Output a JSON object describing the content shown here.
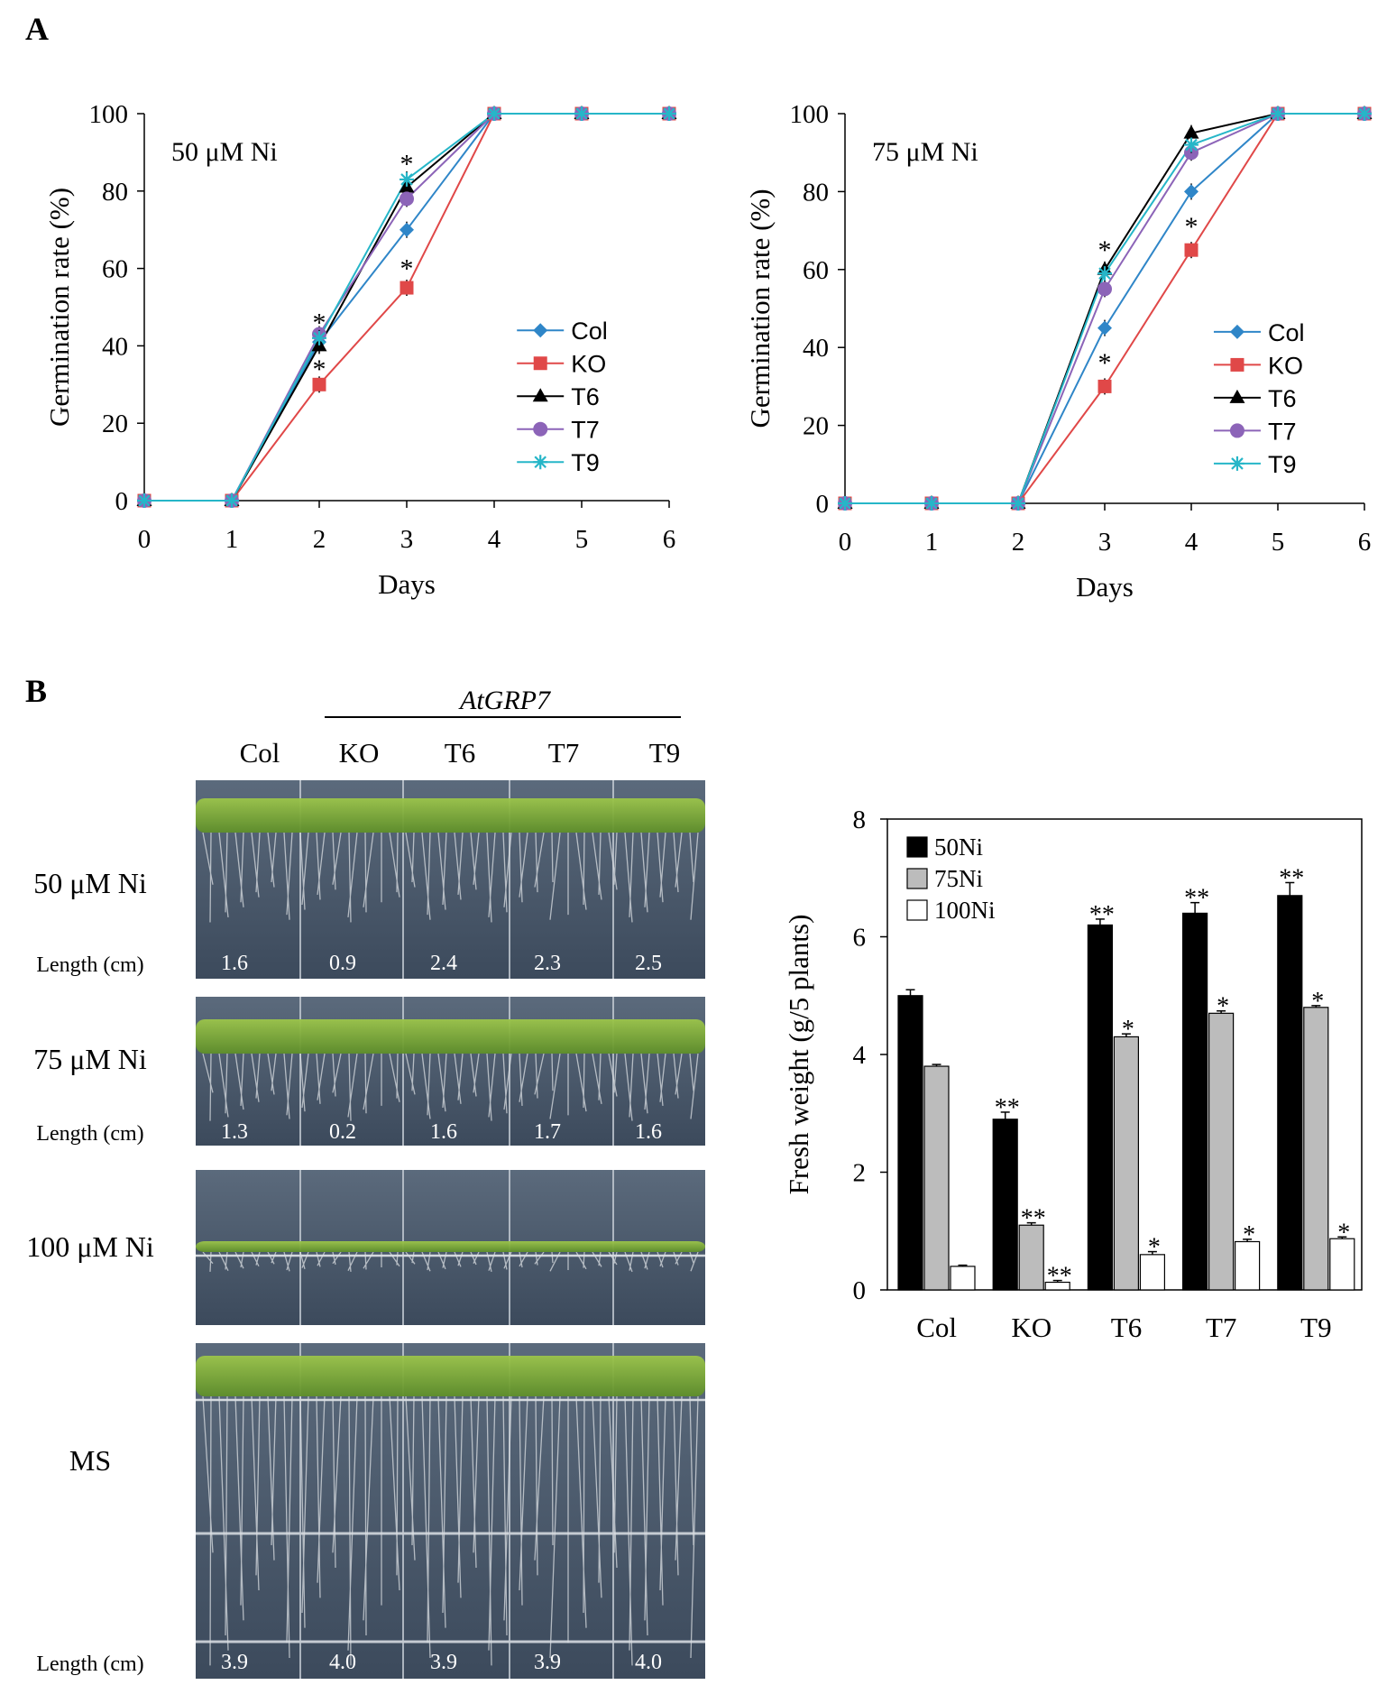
{
  "panel_labels": {
    "a": "A",
    "b": "B"
  },
  "colors": {
    "Col": "#2f86c8",
    "KO": "#e04848",
    "T6": "#000000",
    "T7": "#8c64b8",
    "T9": "#26b6c8",
    "50Ni": "#000000",
    "75Ni": "#bcbcbc",
    "100Ni": "#ffffff"
  },
  "chart_data": [
    {
      "type": "line",
      "condition": "50 μM Ni",
      "xlabel": "Days",
      "ylabel": "Germination  rate (%)",
      "xlim": [
        0,
        6
      ],
      "ylim": [
        0,
        100
      ],
      "xticks": [
        "0",
        "1",
        "2",
        "3",
        "4",
        "5",
        "6"
      ],
      "yticks": [
        "0",
        "20",
        "40",
        "60",
        "80",
        "100"
      ],
      "x": [
        0,
        1,
        2,
        3,
        4,
        5,
        6
      ],
      "series": [
        {
          "name": "Col",
          "marker": "diamond",
          "values": [
            0,
            0,
            41,
            70,
            100,
            100,
            100
          ]
        },
        {
          "name": "KO",
          "marker": "square",
          "values": [
            0,
            0,
            30,
            55,
            100,
            100,
            100
          ]
        },
        {
          "name": "T6",
          "marker": "triangle",
          "values": [
            0,
            0,
            40,
            81,
            100,
            100,
            100
          ]
        },
        {
          "name": "T7",
          "marker": "circle",
          "values": [
            0,
            0,
            43,
            78,
            100,
            100,
            100
          ]
        },
        {
          "name": "T9",
          "marker": "star",
          "values": [
            0,
            0,
            42,
            83,
            100,
            100,
            100
          ]
        }
      ],
      "annotations": [
        {
          "text": "*",
          "x": 2,
          "y": 47
        },
        {
          "text": "*",
          "x": 2,
          "y": 35
        },
        {
          "text": "*",
          "x": 3,
          "y": 88
        },
        {
          "text": "*",
          "x": 3,
          "y": 61
        }
      ]
    },
    {
      "type": "line",
      "condition": "75 μM Ni",
      "xlabel": "Days",
      "ylabel": "Germination  rate (%)",
      "xlim": [
        0,
        6
      ],
      "ylim": [
        0,
        100
      ],
      "xticks": [
        "0",
        "1",
        "2",
        "3",
        "4",
        "5",
        "6"
      ],
      "yticks": [
        "0",
        "20",
        "40",
        "60",
        "80",
        "100"
      ],
      "x": [
        0,
        1,
        2,
        3,
        4,
        5,
        6
      ],
      "series": [
        {
          "name": "Col",
          "marker": "diamond",
          "values": [
            0,
            0,
            0,
            45,
            80,
            100,
            100
          ]
        },
        {
          "name": "KO",
          "marker": "square",
          "values": [
            0,
            0,
            0,
            30,
            65,
            100,
            100
          ]
        },
        {
          "name": "T6",
          "marker": "triangle",
          "values": [
            0,
            0,
            0,
            60,
            95,
            100,
            100
          ]
        },
        {
          "name": "T7",
          "marker": "circle",
          "values": [
            0,
            0,
            0,
            55,
            90,
            100,
            100
          ]
        },
        {
          "name": "T9",
          "marker": "star",
          "values": [
            0,
            0,
            0,
            59,
            92,
            100,
            100
          ]
        }
      ],
      "annotations": [
        {
          "text": "*",
          "x": 3,
          "y": 66
        },
        {
          "text": "*",
          "x": 3,
          "y": 37
        },
        {
          "text": "*",
          "x": 4,
          "y": 72
        }
      ]
    },
    {
      "type": "bar",
      "xlabel": "",
      "ylabel": "Fresh  weight  (g/5 plants)",
      "ylim": [
        0,
        8
      ],
      "yticks": [
        "0",
        "2",
        "4",
        "6",
        "8"
      ],
      "categories": [
        "Col",
        "KO",
        "T6",
        "T7",
        "T9"
      ],
      "series": [
        {
          "name": "50Ni",
          "values": [
            5.0,
            2.9,
            6.2,
            6.4,
            6.7
          ],
          "errors": [
            0.1,
            0.12,
            0.1,
            0.18,
            0.22
          ],
          "marks": [
            "",
            "**",
            "**",
            "**",
            "**"
          ]
        },
        {
          "name": "75Ni",
          "values": [
            3.8,
            1.1,
            4.3,
            4.7,
            4.8
          ],
          "errors": [
            0.03,
            0.04,
            0.05,
            0.04,
            0.03
          ],
          "marks": [
            "",
            "**",
            "*",
            "*",
            "*"
          ]
        },
        {
          "name": "100Ni",
          "values": [
            0.4,
            0.13,
            0.6,
            0.82,
            0.87
          ],
          "errors": [
            0.02,
            0.03,
            0.05,
            0.04,
            0.03
          ],
          "marks": [
            "",
            "**",
            "*",
            "*",
            "*"
          ]
        }
      ]
    }
  ],
  "photo_panel": {
    "gene": "AtGRP7",
    "columns": [
      "Col",
      "KO",
      "T6",
      "T7",
      "T9"
    ],
    "length_label": "Length (cm)",
    "rows": [
      {
        "condition": "50 μM Ni",
        "lengths": [
          "1.6",
          "0.9",
          "2.4",
          "2.3",
          "2.5"
        ]
      },
      {
        "condition": "75 μM Ni",
        "lengths": [
          "1.3",
          "0.2",
          "1.6",
          "1.7",
          "1.6"
        ]
      },
      {
        "condition": "100 μM Ni",
        "lengths": []
      },
      {
        "condition": "MS",
        "lengths": [
          "3.9",
          "4.0",
          "3.9",
          "3.9",
          "4.0"
        ]
      }
    ]
  }
}
